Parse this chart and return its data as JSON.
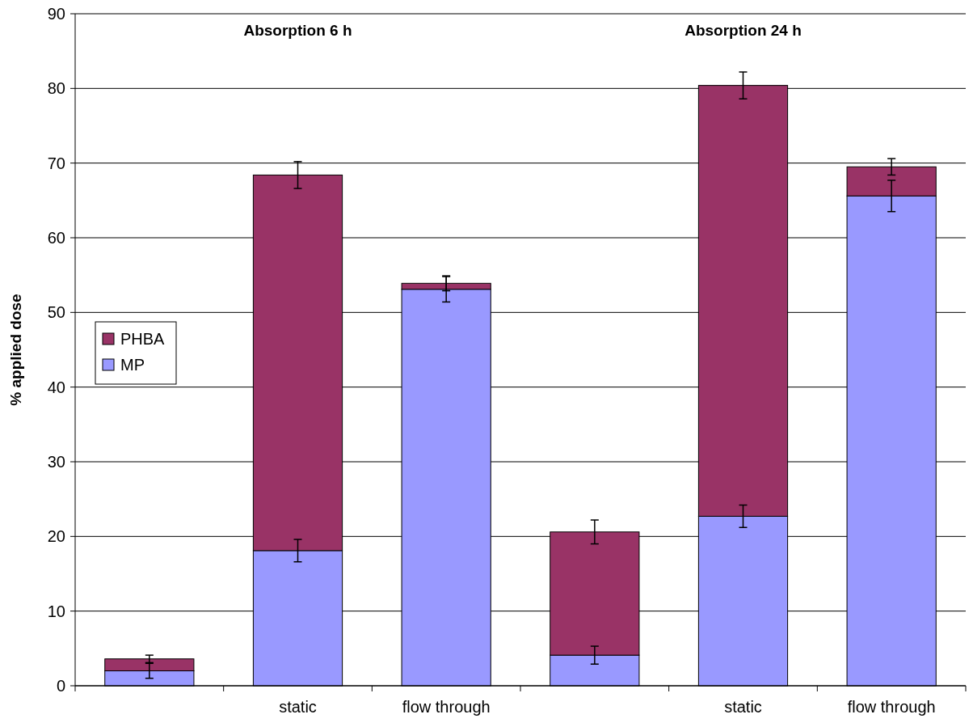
{
  "chart_data": {
    "type": "bar",
    "stacked": true,
    "ylabel": "% applied dose",
    "categories": [
      null,
      "static",
      "flow through",
      null,
      "static",
      "flow through"
    ],
    "series": [
      {
        "name": "MP",
        "color": "#9999ff",
        "values": [
          2.0,
          18.1,
          53.1,
          4.1,
          22.7,
          65.6
        ],
        "errors": [
          1.0,
          1.5,
          1.7,
          1.2,
          1.5,
          2.1
        ]
      },
      {
        "name": "PHBA",
        "color": "#993366",
        "values": [
          1.6,
          50.3,
          0.8,
          16.5,
          57.7,
          3.9
        ],
        "errors": [
          0.5,
          1.8,
          1.0,
          1.6,
          1.8,
          1.1
        ]
      }
    ],
    "ylim": [
      0,
      90
    ],
    "yticks": [
      0,
      10,
      20,
      30,
      40,
      50,
      60,
      70,
      80,
      90
    ],
    "grid": "y",
    "legend": "left",
    "annotations": [
      "Absorption 6 h",
      "Absorption 24 h"
    ]
  }
}
